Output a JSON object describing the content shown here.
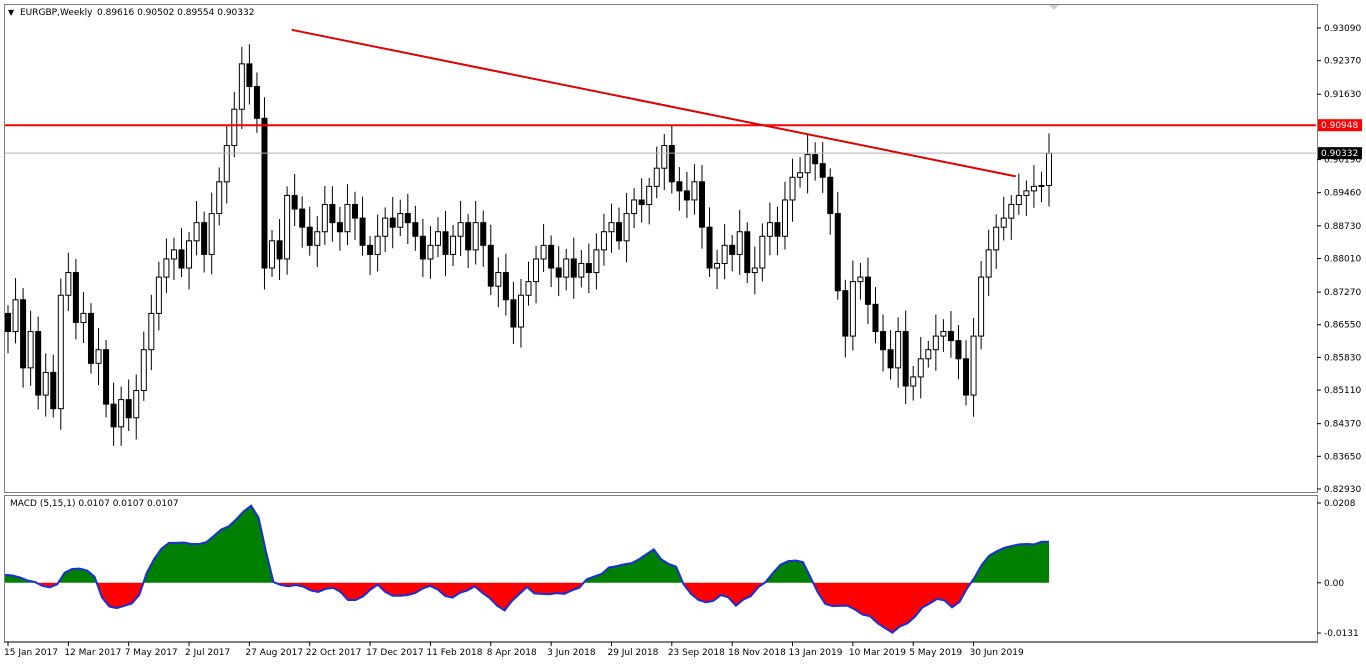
{
  "chart_data": [
    {
      "type": "candlestick",
      "title": "EURGBP,Weekly",
      "ohlc_label": "0.89616 0.90502 0.89554 0.90332",
      "y_ticks": [
        "0.93090",
        "0.92370",
        "0.91630",
        "0.90190",
        "0.89460",
        "0.88730",
        "0.88010",
        "0.87270",
        "0.86550",
        "0.85830",
        "0.85110",
        "0.84370",
        "0.83650",
        "0.82930"
      ],
      "ylim": [
        0.8293,
        0.9309
      ],
      "x_labels": [
        "15 Jan 2017",
        "12 Mar 2017",
        "7 May 2017",
        "2 Jul 2017",
        "27 Aug 2017",
        "22 Oct 2017",
        "17 Dec 2017",
        "11 Feb 2018",
        "8 Apr 2018",
        "3 Jun 2018",
        "29 Jul 2018",
        "23 Sep 2018",
        "18 Nov 2018",
        "13 Jan 2019",
        "10 Mar 2019",
        "5 May 2019",
        "30 Jun 2019"
      ],
      "horizontal_line": {
        "value": 0.90948,
        "label": "0.90948",
        "color": "#ff0000"
      },
      "current_price": {
        "value": 0.90332,
        "label": "0.90332"
      },
      "trendline": {
        "color": "#dd0000",
        "from": [
          4.7,
          0.9305
        ],
        "to": [
          16.7,
          0.8982
        ]
      },
      "closes": [
        0.864,
        0.871,
        0.856,
        0.864,
        0.85,
        0.855,
        0.847,
        0.872,
        0.877,
        0.866,
        0.868,
        0.857,
        0.86,
        0.848,
        0.843,
        0.849,
        0.845,
        0.851,
        0.86,
        0.868,
        0.876,
        0.88,
        0.882,
        0.878,
        0.884,
        0.888,
        0.881,
        0.89,
        0.897,
        0.905,
        0.913,
        0.923,
        0.918,
        0.911,
        0.878,
        0.884,
        0.88,
        0.894,
        0.891,
        0.887,
        0.883,
        0.886,
        0.892,
        0.888,
        0.886,
        0.892,
        0.889,
        0.883,
        0.881,
        0.885,
        0.889,
        0.887,
        0.89,
        0.888,
        0.885,
        0.88,
        0.883,
        0.886,
        0.881,
        0.885,
        0.888,
        0.882,
        0.888,
        0.883,
        0.874,
        0.877,
        0.871,
        0.865,
        0.872,
        0.875,
        0.88,
        0.883,
        0.878,
        0.876,
        0.88,
        0.876,
        0.879,
        0.877,
        0.882,
        0.886,
        0.888,
        0.884,
        0.89,
        0.893,
        0.892,
        0.896,
        0.9,
        0.905,
        0.897,
        0.895,
        0.893,
        0.897,
        0.887,
        0.878,
        0.879,
        0.883,
        0.881,
        0.886,
        0.877,
        0.878,
        0.885,
        0.888,
        0.885,
        0.893,
        0.898,
        0.899,
        0.903,
        0.901,
        0.898,
        0.89,
        0.873,
        0.863,
        0.875,
        0.876,
        0.87,
        0.864,
        0.86,
        0.856,
        0.864,
        0.852,
        0.854,
        0.858,
        0.86,
        0.863,
        0.864,
        0.862,
        0.858,
        0.85,
        0.863,
        0.876,
        0.882,
        0.887,
        0.889,
        0.892,
        0.894,
        0.895,
        0.896,
        0.8962,
        0.9033
      ],
      "range": 0.006
    },
    {
      "type": "area",
      "title": "MACD (5,15,1) 0.0107 0.0107 0.0107",
      "y_ticks": [
        "0.0208",
        "0.00",
        "-0.0131"
      ],
      "ylim": [
        -0.0131,
        0.0208
      ],
      "values": [
        0.0021,
        0.0019,
        0.0014,
        0.0006,
        0.0002,
        -0.0008,
        -0.0012,
        -0.0004,
        0.0026,
        0.0036,
        0.0037,
        0.0032,
        0.0016,
        -0.0038,
        -0.0062,
        -0.0066,
        -0.006,
        -0.0054,
        -0.0032,
        0.0025,
        0.0062,
        0.0089,
        0.0104,
        0.0104,
        0.0105,
        0.0101,
        0.0101,
        0.0106,
        0.0122,
        0.0139,
        0.0147,
        0.0165,
        0.0186,
        0.0201,
        0.017,
        0.0081,
        0.0002,
        -0.0006,
        -0.0009,
        -0.0006,
        -0.001,
        -0.002,
        -0.0024,
        -0.0016,
        -0.0013,
        -0.0024,
        -0.0045,
        -0.0045,
        -0.0036,
        -0.0018,
        -0.0005,
        -0.0024,
        -0.0034,
        -0.0034,
        -0.0032,
        -0.0027,
        -0.0015,
        -0.0008,
        -0.0017,
        -0.0034,
        -0.0039,
        -0.0026,
        -0.002,
        -0.0009,
        -0.0026,
        -0.004,
        -0.006,
        -0.0072,
        -0.0047,
        -0.0029,
        -0.0011,
        -0.0028,
        -0.0029,
        -0.003,
        -0.0027,
        -0.0029,
        -0.002,
        -0.0013,
        0.0009,
        0.0016,
        0.0023,
        0.004,
        0.0043,
        0.0048,
        0.0051,
        0.0061,
        0.0074,
        0.0087,
        0.0061,
        0.0049,
        0.0042,
        -0.0004,
        -0.0029,
        -0.0045,
        -0.0051,
        -0.0047,
        -0.0032,
        -0.0038,
        -0.006,
        -0.0044,
        -0.0035,
        -0.0012,
        0.0002,
        0.0026,
        0.0047,
        0.0056,
        0.0058,
        0.0054,
        0.0015,
        -0.0025,
        -0.0055,
        -0.0061,
        -0.006,
        -0.006,
        -0.007,
        -0.0083,
        -0.0087,
        -0.0105,
        -0.0118,
        -0.013,
        -0.0114,
        -0.0106,
        -0.0089,
        -0.0065,
        -0.0054,
        -0.0042,
        -0.0046,
        -0.0064,
        -0.005,
        -0.0015,
        0.0013,
        0.0047,
        0.0071,
        0.0082,
        0.0091,
        0.0096,
        0.01,
        0.0101,
        0.01,
        0.0107,
        0.0107
      ]
    }
  ],
  "colors": {
    "positive_area": "#008000",
    "negative_area": "#ff0000",
    "macd_line": "#1a2fd6",
    "bull_body": "#ffffff",
    "bear_body": "#000000"
  }
}
